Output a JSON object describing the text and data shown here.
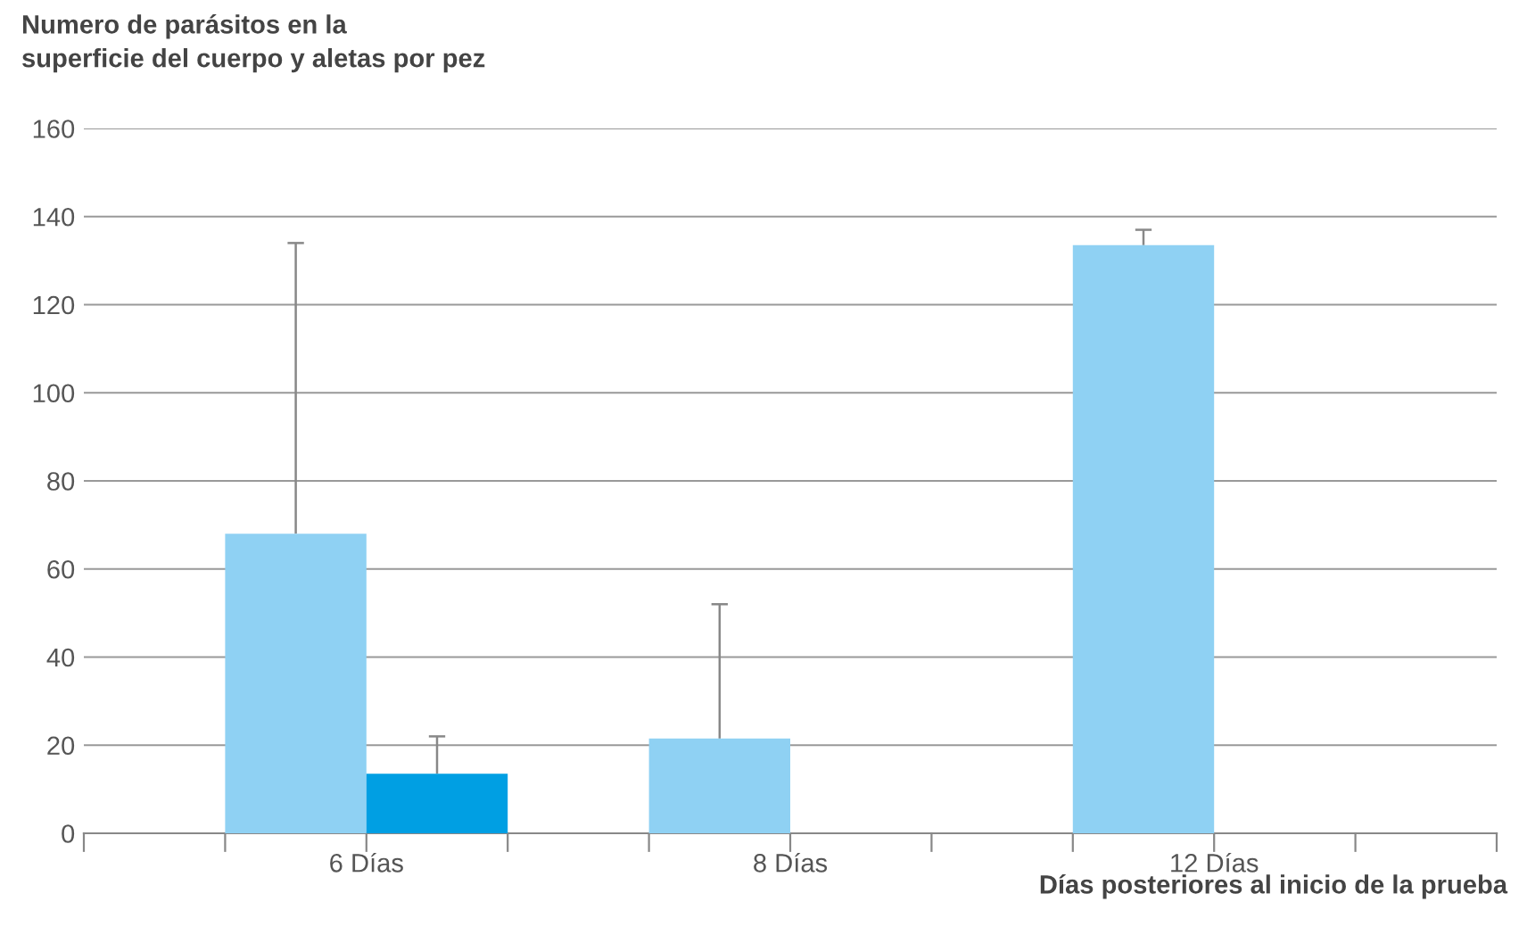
{
  "chart_data": {
    "type": "bar",
    "ylabel": "Numero de parásitos en la\nsuperficie del cuerpo y aletas por pez",
    "xlabel": "Días posteriores al inicio de la prueba",
    "categories": [
      "6 Días",
      "8 Días",
      "12 Días"
    ],
    "series": [
      {
        "color": "#8fd1f3",
        "values": [
          68,
          21.5,
          133.5
        ],
        "errors": [
          [
            68,
            134
          ],
          [
            21.5,
            52
          ],
          [
            133.5,
            137
          ]
        ]
      },
      {
        "color": "#009fe3",
        "values": [
          13.5,
          null,
          null
        ],
        "errors": [
          [
            13.5,
            22
          ],
          null,
          null
        ]
      }
    ],
    "ylim": [
      0,
      160
    ],
    "yticks": [
      0,
      20,
      40,
      60,
      80,
      100,
      120,
      140,
      160
    ],
    "grid": "y"
  }
}
